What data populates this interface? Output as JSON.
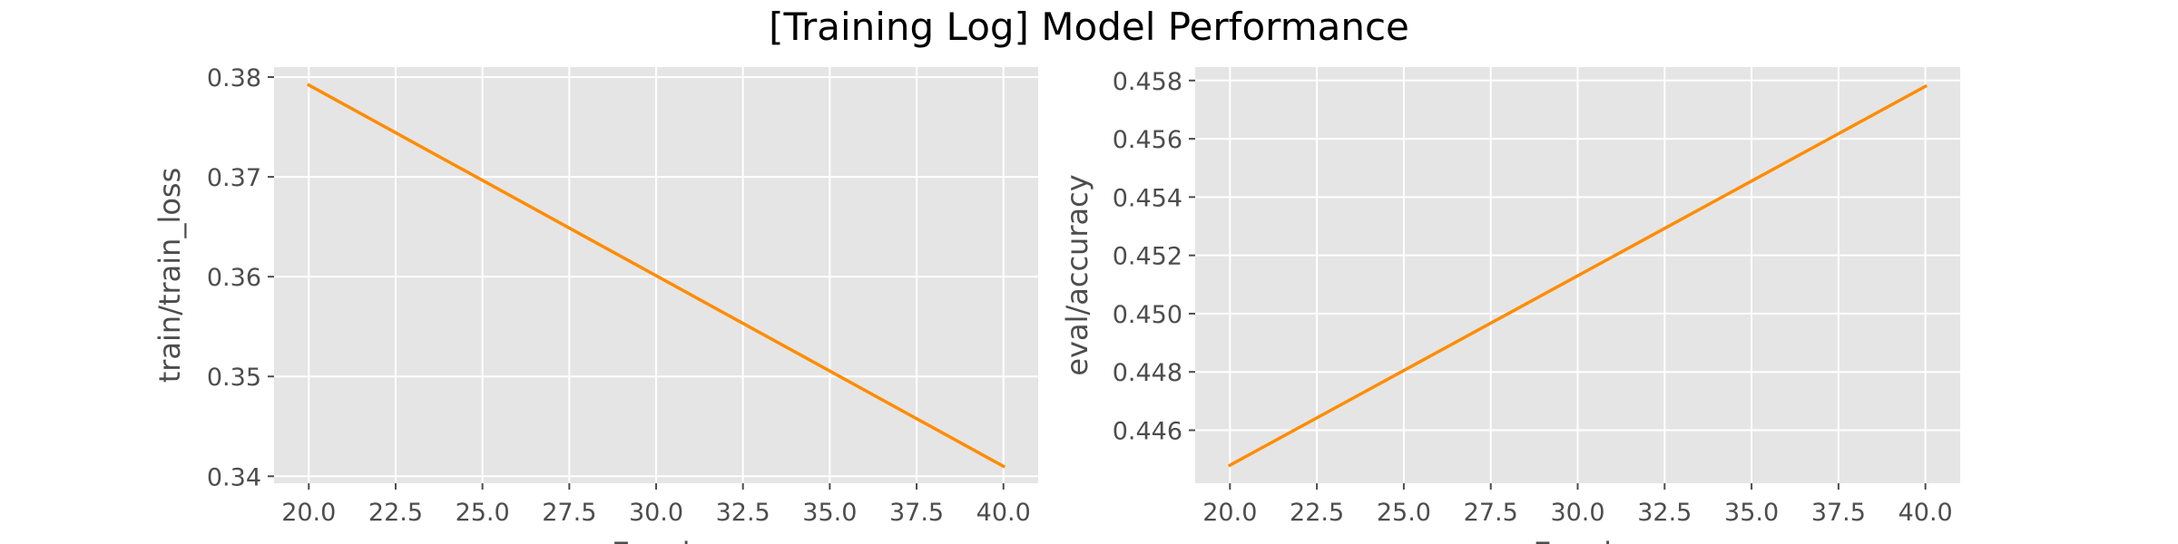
{
  "title": "[Training Log] Model Performance",
  "colors": {
    "panel_bg": "#e5e5e5",
    "grid": "#ffffff",
    "line": "#ff8c00",
    "text": "#4d4d4d"
  },
  "chart_data": [
    {
      "type": "line",
      "title": "",
      "xlabel": "Epoch",
      "ylabel": "train/train_loss",
      "x": [
        20,
        40
      ],
      "series": [
        {
          "values": [
            0.3792,
            0.341
          ]
        }
      ],
      "xlim": [
        19.0,
        41.0
      ],
      "ylim": [
        0.3393,
        0.381
      ],
      "xticks": [
        20.0,
        22.5,
        25.0,
        27.5,
        30.0,
        32.5,
        35.0,
        37.5,
        40.0
      ],
      "xtick_labels": [
        "20.0",
        "22.5",
        "25.0",
        "27.5",
        "30.0",
        "32.5",
        "35.0",
        "37.5",
        "40.0"
      ],
      "yticks": [
        0.34,
        0.35,
        0.36,
        0.37,
        0.38
      ],
      "ytick_labels": [
        "0.34",
        "0.35",
        "0.36",
        "0.37",
        "0.38"
      ],
      "grid": true,
      "legend": "none"
    },
    {
      "type": "line",
      "title": "",
      "xlabel": "Epoch",
      "ylabel": "eval/accuracy",
      "x": [
        20,
        40
      ],
      "series": [
        {
          "values": [
            0.4448,
            0.4578
          ]
        }
      ],
      "xlim": [
        19.0,
        41.0
      ],
      "ylim": [
        0.44418,
        0.45846
      ],
      "xticks": [
        20.0,
        22.5,
        25.0,
        27.5,
        30.0,
        32.5,
        35.0,
        37.5,
        40.0
      ],
      "xtick_labels": [
        "20.0",
        "22.5",
        "25.0",
        "27.5",
        "30.0",
        "32.5",
        "35.0",
        "37.5",
        "40.0"
      ],
      "yticks": [
        0.446,
        0.448,
        0.45,
        0.452,
        0.454,
        0.456,
        0.458
      ],
      "ytick_labels": [
        "0.446",
        "0.448",
        "0.450",
        "0.452",
        "0.454",
        "0.456",
        "0.458"
      ],
      "grid": true,
      "legend": "none"
    }
  ]
}
